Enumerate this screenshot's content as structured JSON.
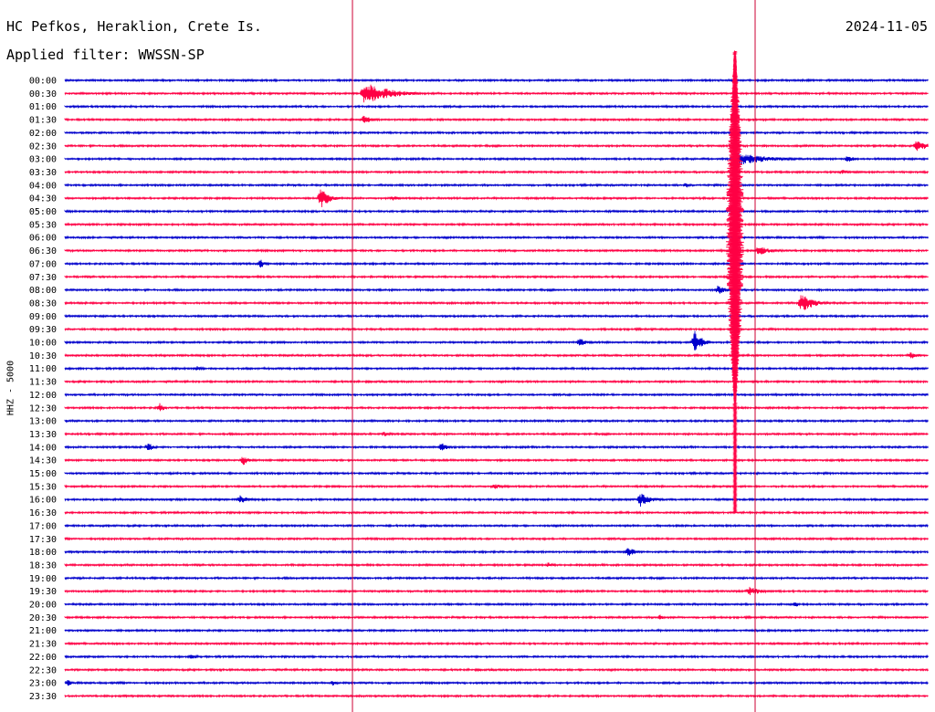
{
  "header": {
    "station": "HC Pefkos, Heraklion, Crete Is.",
    "filter": "Applied filter: WWSSN-SP",
    "date": "2024-11-05"
  },
  "chart_data": {
    "type": "line",
    "title": "HC Pefkos, Heraklion, Crete Is.",
    "subtitle": "Applied filter: WWSSN-SP",
    "ylabel": "HHZ - 5000",
    "xlabel": "",
    "row_labels": [
      "00:00",
      "00:30",
      "01:00",
      "01:30",
      "02:00",
      "02:30",
      "03:00",
      "03:30",
      "04:00",
      "04:30",
      "05:00",
      "05:30",
      "06:00",
      "06:30",
      "07:00",
      "07:30",
      "08:00",
      "08:30",
      "09:00",
      "09:30",
      "10:00",
      "10:30",
      "11:00",
      "11:30",
      "12:00",
      "12:30",
      "13:00",
      "13:30",
      "14:00",
      "14:30",
      "15:00",
      "15:30",
      "16:00",
      "16:30",
      "17:00",
      "17:30",
      "18:00",
      "18:30",
      "19:00",
      "19:30",
      "20:00",
      "20:30",
      "21:00",
      "21:30",
      "22:00",
      "22:30",
      "23:00",
      "23:30"
    ],
    "row_colors": [
      "#0000cc",
      "#ff0044"
    ],
    "marker_color": "#cc0033",
    "marker_minutes": [
      10,
      24
    ],
    "grid": false,
    "events": [
      {
        "row": 1,
        "minute": 10.4,
        "amp": 13,
        "dur": 2.5
      },
      {
        "row": 3,
        "minute": 10.4,
        "amp": 5,
        "dur": 0.8
      },
      {
        "row": 5,
        "minute": 29.6,
        "amp": 6,
        "dur": 1.5
      },
      {
        "row": 6,
        "minute": 27.2,
        "amp": 4,
        "dur": 0.8
      },
      {
        "row": 7,
        "minute": 27.0,
        "amp": 3,
        "dur": 0.8
      },
      {
        "row": 8,
        "minute": 21.6,
        "amp": 3,
        "dur": 0.6
      },
      {
        "row": 9,
        "minute": 8.9,
        "amp": 11,
        "dur": 0.9
      },
      {
        "row": 9,
        "minute": 11.4,
        "amp": 3,
        "dur": 0.8
      },
      {
        "row": 13,
        "minute": 24.1,
        "amp": 5,
        "dur": 1.6
      },
      {
        "row": 14,
        "minute": 6.8,
        "amp": 5,
        "dur": 0.5
      },
      {
        "row": 16,
        "minute": 22.7,
        "amp": 5,
        "dur": 1.0
      },
      {
        "row": 17,
        "minute": 25.6,
        "amp": 11,
        "dur": 1.2
      },
      {
        "row": 20,
        "minute": 21.9,
        "amp": 13,
        "dur": 0.8
      },
      {
        "row": 20,
        "minute": 17.9,
        "amp": 5,
        "dur": 0.6
      },
      {
        "row": 21,
        "minute": 29.4,
        "amp": 4,
        "dur": 1.0
      },
      {
        "row": 22,
        "minute": 4.6,
        "amp": 3,
        "dur": 0.5
      },
      {
        "row": 25,
        "minute": 3.3,
        "amp": 6,
        "dur": 0.4
      },
      {
        "row": 27,
        "minute": 11.1,
        "amp": 3,
        "dur": 0.6
      },
      {
        "row": 28,
        "minute": 2.9,
        "amp": 5,
        "dur": 0.6
      },
      {
        "row": 28,
        "minute": 13.1,
        "amp": 5,
        "dur": 0.6
      },
      {
        "row": 29,
        "minute": 6.2,
        "amp": 6,
        "dur": 0.5
      },
      {
        "row": 31,
        "minute": 14.9,
        "amp": 3,
        "dur": 1.2
      },
      {
        "row": 32,
        "minute": 6.1,
        "amp": 5,
        "dur": 0.8
      },
      {
        "row": 32,
        "minute": 20.0,
        "amp": 8,
        "dur": 1.1
      },
      {
        "row": 36,
        "minute": 19.6,
        "amp": 6,
        "dur": 0.6
      },
      {
        "row": 37,
        "minute": 16.8,
        "amp": 3,
        "dur": 0.6
      },
      {
        "row": 39,
        "minute": 23.8,
        "amp": 5,
        "dur": 1.3
      },
      {
        "row": 40,
        "minute": 25.4,
        "amp": 3,
        "dur": 0.5
      },
      {
        "row": 41,
        "minute": 20.7,
        "amp": 3,
        "dur": 0.4
      },
      {
        "row": 44,
        "minute": 4.4,
        "amp": 3,
        "dur": 0.8
      },
      {
        "row": 46,
        "minute": 0.1,
        "amp": 4,
        "dur": 0.4
      },
      {
        "row": 46,
        "minute": 9.3,
        "amp": 3,
        "dur": 0.5
      }
    ],
    "big_event": {
      "row": 6,
      "minute": 23.3,
      "rows_spanned": 27
    }
  }
}
